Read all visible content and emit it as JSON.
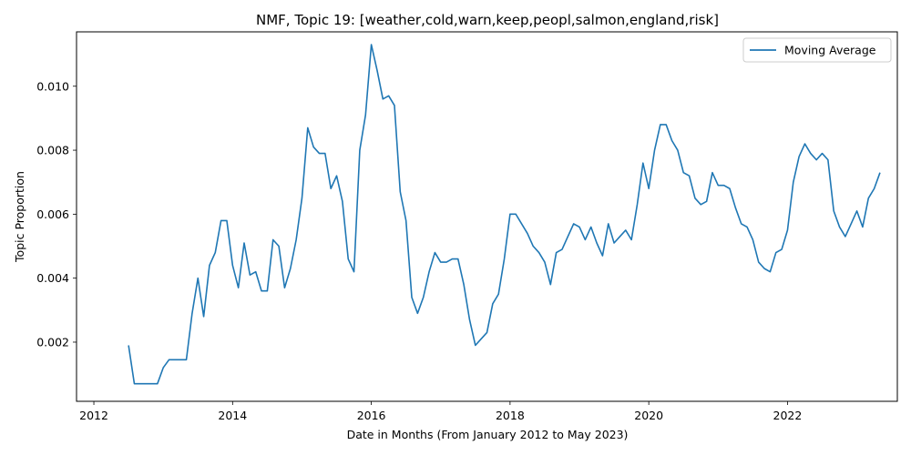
{
  "chart_data": {
    "type": "line",
    "title": "NMF, Topic 19: [weather,cold,warn,keep,peopl,salmon,england,risk]",
    "xlabel": "Date in Months (From January 2012 to May 2023)",
    "ylabel": "Topic Proportion",
    "x_ticks": [
      "2012",
      "2014",
      "2016",
      "2018",
      "2020",
      "2022"
    ],
    "y_ticks": [
      "0.002",
      "0.004",
      "0.006",
      "0.008",
      "0.010"
    ],
    "xlim": [
      "2011-10",
      "2023-08"
    ],
    "ylim": [
      0.00015,
      0.0117
    ],
    "grid": false,
    "legend_position": "top-right",
    "series": [
      {
        "name": "Moving Average",
        "color": "#1f77b4",
        "x": [
          "2012-07",
          "2012-08",
          "2012-09",
          "2012-10",
          "2012-11",
          "2012-12",
          "2013-01",
          "2013-02",
          "2013-03",
          "2013-04",
          "2013-05",
          "2013-06",
          "2013-07",
          "2013-08",
          "2013-09",
          "2013-10",
          "2013-11",
          "2013-12",
          "2014-01",
          "2014-02",
          "2014-03",
          "2014-04",
          "2014-05",
          "2014-06",
          "2014-07",
          "2014-08",
          "2014-09",
          "2014-10",
          "2014-11",
          "2014-12",
          "2015-01",
          "2015-02",
          "2015-03",
          "2015-04",
          "2015-05",
          "2015-06",
          "2015-07",
          "2015-08",
          "2015-09",
          "2015-10",
          "2015-11",
          "2015-12",
          "2016-01",
          "2016-02",
          "2016-03",
          "2016-04",
          "2016-05",
          "2016-06",
          "2016-07",
          "2016-08",
          "2016-09",
          "2016-10",
          "2016-11",
          "2016-12",
          "2017-01",
          "2017-02",
          "2017-03",
          "2017-04",
          "2017-05",
          "2017-06",
          "2017-07",
          "2017-08",
          "2017-09",
          "2017-10",
          "2017-11",
          "2017-12",
          "2018-01",
          "2018-02",
          "2018-03",
          "2018-04",
          "2018-05",
          "2018-06",
          "2018-07",
          "2018-08",
          "2018-09",
          "2018-10",
          "2018-11",
          "2018-12",
          "2019-01",
          "2019-02",
          "2019-03",
          "2019-04",
          "2019-05",
          "2019-06",
          "2019-07",
          "2019-08",
          "2019-09",
          "2019-10",
          "2019-11",
          "2019-12",
          "2020-01",
          "2020-02",
          "2020-03",
          "2020-04",
          "2020-05",
          "2020-06",
          "2020-07",
          "2020-08",
          "2020-09",
          "2020-10",
          "2020-11",
          "2020-12",
          "2021-01",
          "2021-02",
          "2021-03",
          "2021-04",
          "2021-05",
          "2021-06",
          "2021-07",
          "2021-08",
          "2021-09",
          "2021-10",
          "2021-11",
          "2021-12",
          "2022-01",
          "2022-02",
          "2022-03",
          "2022-04",
          "2022-05",
          "2022-06",
          "2022-07",
          "2022-08",
          "2022-09",
          "2022-10",
          "2022-11",
          "2022-12",
          "2023-01",
          "2023-02",
          "2023-03",
          "2023-04",
          "2023-05"
        ],
        "values": [
          0.0019,
          0.0007,
          0.0007,
          0.0007,
          0.0007,
          0.0007,
          0.0012,
          0.00145,
          0.00145,
          0.00145,
          0.00145,
          0.0029,
          0.004,
          0.0028,
          0.0044,
          0.0048,
          0.0058,
          0.0058,
          0.0044,
          0.0037,
          0.0051,
          0.0041,
          0.0042,
          0.0036,
          0.0036,
          0.0052,
          0.005,
          0.0037,
          0.0043,
          0.0052,
          0.0065,
          0.0087,
          0.0081,
          0.0079,
          0.0079,
          0.0068,
          0.0072,
          0.0064,
          0.0046,
          0.0042,
          0.008,
          0.0091,
          0.0113,
          0.0105,
          0.0096,
          0.0097,
          0.0094,
          0.0067,
          0.0058,
          0.0034,
          0.0029,
          0.0034,
          0.0042,
          0.0048,
          0.0045,
          0.0045,
          0.0046,
          0.0046,
          0.0038,
          0.0027,
          0.0019,
          0.0021,
          0.0023,
          0.0032,
          0.0035,
          0.0046,
          0.006,
          0.006,
          0.0057,
          0.0054,
          0.005,
          0.0048,
          0.0045,
          0.0038,
          0.0048,
          0.0049,
          0.0053,
          0.0057,
          0.0056,
          0.0052,
          0.0056,
          0.0051,
          0.0047,
          0.0057,
          0.0051,
          0.0053,
          0.0055,
          0.0052,
          0.0063,
          0.0076,
          0.0068,
          0.008,
          0.0088,
          0.0088,
          0.0083,
          0.008,
          0.0073,
          0.0072,
          0.0065,
          0.0063,
          0.0064,
          0.0073,
          0.0069,
          0.0069,
          0.0068,
          0.0062,
          0.0057,
          0.0056,
          0.0052,
          0.0045,
          0.0043,
          0.0042,
          0.0048,
          0.0049,
          0.0055,
          0.007,
          0.0078,
          0.0082,
          0.0079,
          0.0077,
          0.0079,
          0.0077,
          0.0061,
          0.0056,
          0.0053,
          0.0057,
          0.0061,
          0.0056,
          0.0065,
          0.0068,
          0.0073
        ]
      }
    ]
  }
}
